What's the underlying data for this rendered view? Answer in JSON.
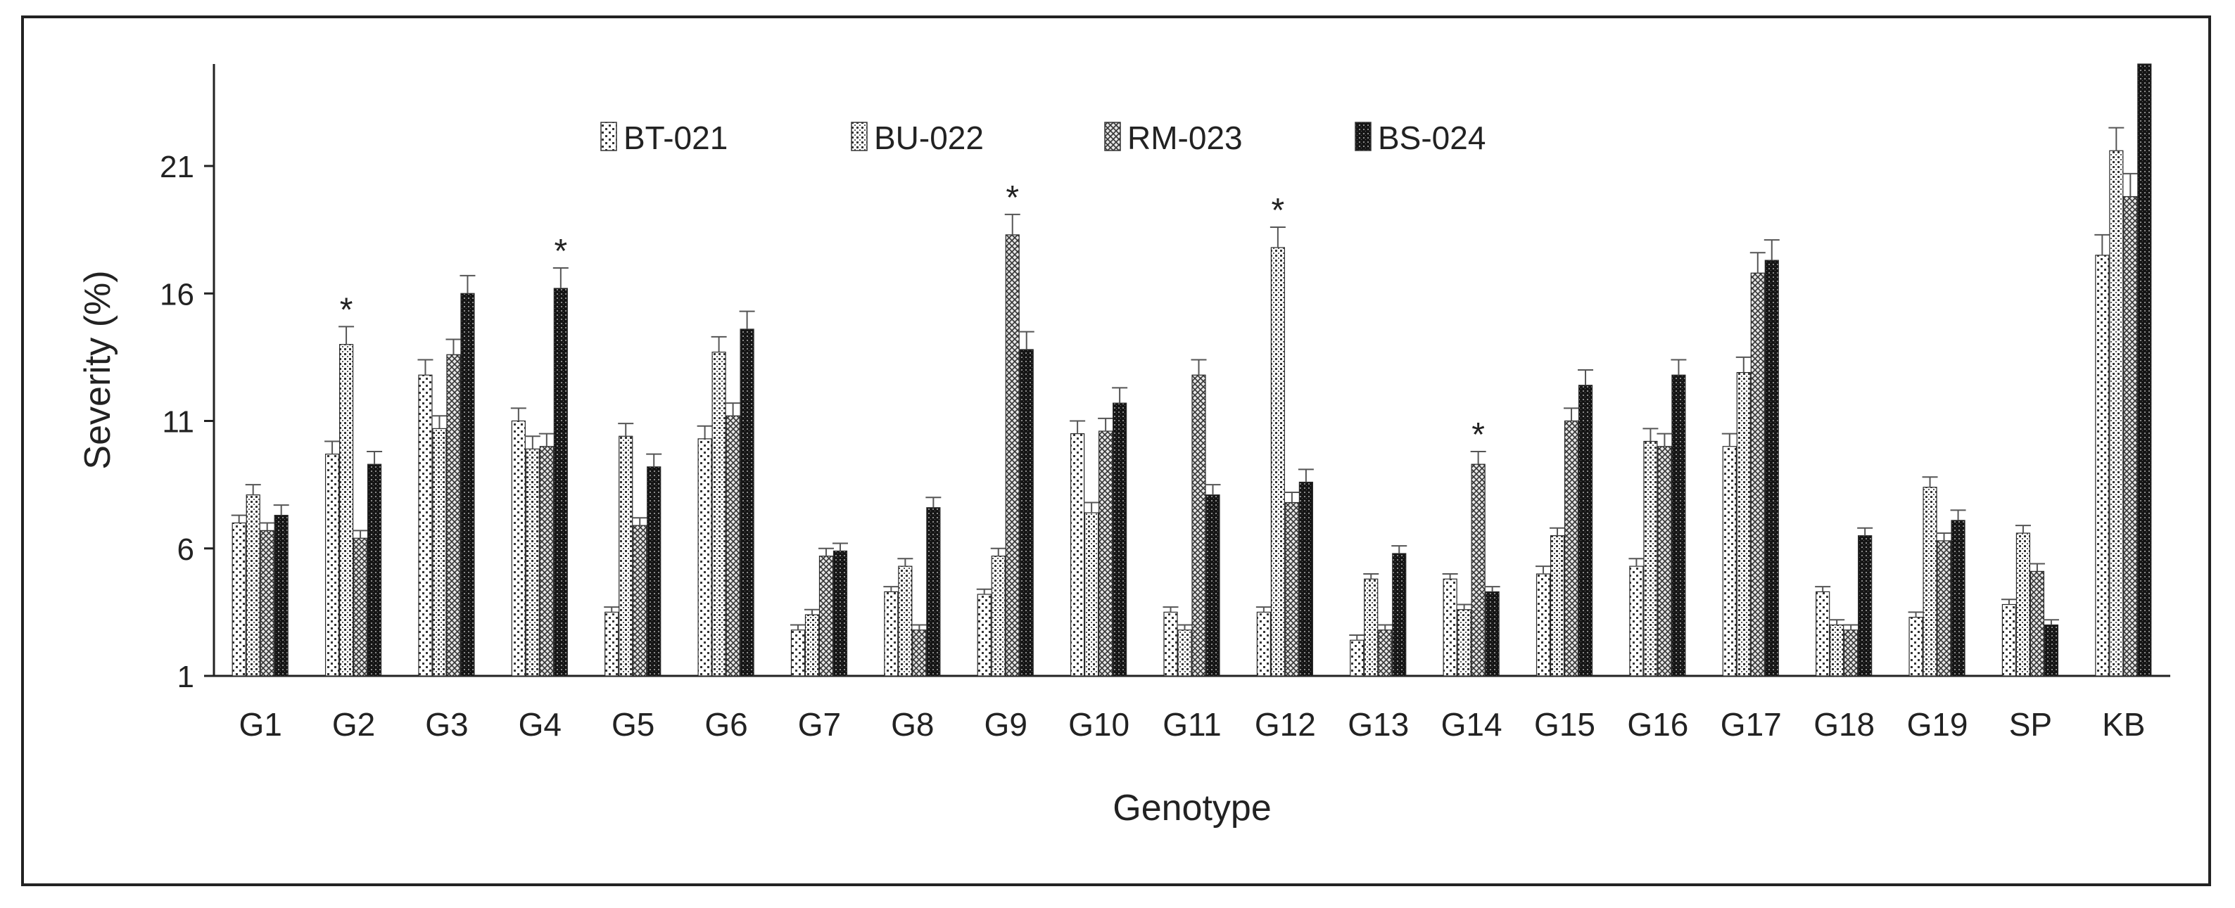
{
  "chart_data": {
    "type": "bar",
    "title": "",
    "xlabel": "Genotype",
    "ylabel": "Severity (%)",
    "ylim": [
      1,
      25
    ],
    "yticks": [
      1,
      6,
      11,
      16,
      21
    ],
    "legend_position": "top-center",
    "categories": [
      "G1",
      "G2",
      "G3",
      "G4",
      "G5",
      "G6",
      "G7",
      "G8",
      "G9",
      "G10",
      "G11",
      "G12",
      "G13",
      "G14",
      "G15",
      "G16",
      "G17",
      "G18",
      "G19",
      "SP",
      "KB"
    ],
    "series": [
      {
        "name": "BT-021",
        "pattern": "dots-sparse",
        "values": [
          7.0,
          9.7,
          12.8,
          11.0,
          3.5,
          10.3,
          2.8,
          4.3,
          4.2,
          10.5,
          3.5,
          3.5,
          2.4,
          4.8,
          5.0,
          5.3,
          10.0,
          4.3,
          3.3,
          3.8,
          17.5
        ],
        "errors": [
          0.3,
          0.5,
          0.6,
          0.5,
          0.2,
          0.5,
          0.2,
          0.2,
          0.2,
          0.5,
          0.2,
          0.2,
          0.2,
          0.2,
          0.3,
          0.3,
          0.5,
          0.2,
          0.2,
          0.2,
          0.8
        ]
      },
      {
        "name": "BU-022",
        "pattern": "dots-dense",
        "values": [
          8.1,
          14.0,
          10.7,
          9.9,
          10.4,
          13.7,
          3.4,
          5.3,
          5.7,
          7.4,
          2.8,
          17.8,
          4.8,
          3.6,
          6.5,
          10.2,
          12.9,
          3.0,
          8.4,
          6.6,
          21.6
        ],
        "errors": [
          0.4,
          0.7,
          0.5,
          0.5,
          0.5,
          0.6,
          0.2,
          0.3,
          0.3,
          0.4,
          0.2,
          0.8,
          0.2,
          0.2,
          0.3,
          0.5,
          0.6,
          0.2,
          0.4,
          0.3,
          0.9
        ]
      },
      {
        "name": "RM-023",
        "pattern": "crosshatch",
        "values": [
          6.7,
          6.4,
          13.6,
          10.0,
          6.9,
          11.2,
          5.7,
          2.8,
          18.3,
          10.6,
          12.8,
          7.8,
          2.8,
          9.3,
          11.0,
          10.0,
          16.8,
          2.8,
          6.3,
          5.1,
          19.8
        ],
        "errors": [
          0.3,
          0.3,
          0.6,
          0.5,
          0.3,
          0.5,
          0.3,
          0.2,
          0.8,
          0.5,
          0.6,
          0.4,
          0.2,
          0.5,
          0.5,
          0.5,
          0.8,
          0.2,
          0.3,
          0.3,
          0.9
        ]
      },
      {
        "name": "BS-024",
        "pattern": "dense-dark",
        "values": [
          7.3,
          9.3,
          16.0,
          16.2,
          9.2,
          14.6,
          5.9,
          7.6,
          13.8,
          11.7,
          8.1,
          8.6,
          5.8,
          4.3,
          12.4,
          12.8,
          17.3,
          6.5,
          7.1,
          3.0,
          25.0
        ],
        "errors": [
          0.4,
          0.5,
          0.7,
          0.8,
          0.5,
          0.7,
          0.3,
          0.4,
          0.7,
          0.6,
          0.4,
          0.5,
          0.3,
          0.2,
          0.6,
          0.6,
          0.8,
          0.3,
          0.4,
          0.2,
          0.9
        ]
      }
    ],
    "annotations": [
      {
        "category": "G2",
        "series": "BU-022",
        "text": "*"
      },
      {
        "category": "G4",
        "series": "BS-024",
        "text": "*"
      },
      {
        "category": "G9",
        "series": "RM-023",
        "text": "*"
      },
      {
        "category": "G12",
        "series": "BU-022",
        "text": "*"
      },
      {
        "category": "G14",
        "series": "RM-023",
        "text": "*"
      }
    ]
  }
}
